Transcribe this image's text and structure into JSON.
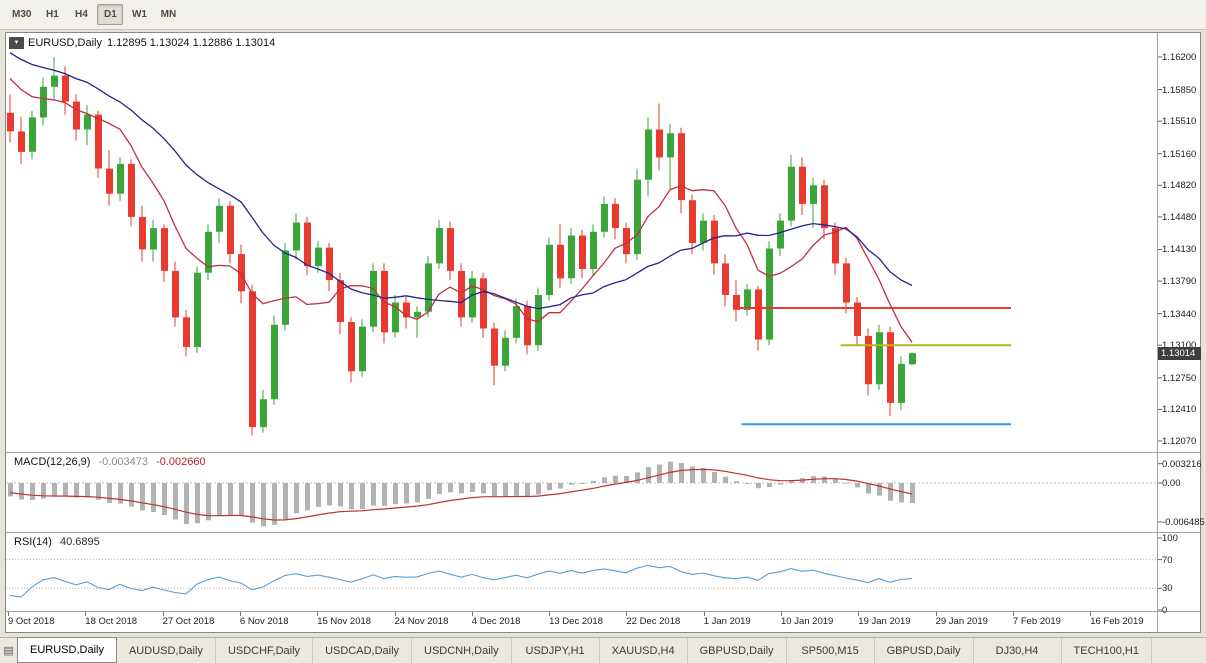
{
  "toolbar": {
    "timeframes": [
      {
        "label": "M30",
        "active": false
      },
      {
        "label": "H1",
        "active": false
      },
      {
        "label": "H4",
        "active": false
      },
      {
        "label": "D1",
        "active": true
      },
      {
        "label": "W1",
        "active": false
      },
      {
        "label": "MN",
        "active": false
      }
    ]
  },
  "icons": {
    "chart_dropdown_marker": "▼",
    "window_list": "▤"
  },
  "chart": {
    "title_symbol": "EURUSD,Daily",
    "title_values": "1.12895 1.13024 1.12886 1.13014"
  },
  "price_axis": {
    "labels": [
      "1.16200",
      "1.15850",
      "1.15510",
      "1.15160",
      "1.14820",
      "1.14480",
      "1.14130",
      "1.13790",
      "1.13440",
      "1.13100",
      "1.12750",
      "1.12410",
      "1.12070"
    ],
    "current_price": "1.13014"
  },
  "date_axis": {
    "labels": [
      "9 Oct 2018",
      "18 Oct 2018",
      "27 Oct 2018",
      "6 Nov 2018",
      "15 Nov 2018",
      "24 Nov 2018",
      "4 Dec 2018",
      "13 Dec 2018",
      "22 Dec 2018",
      "1 Jan 2019",
      "10 Jan 2019",
      "19 Jan 2019",
      "29 Jan 2019",
      "7 Feb 2019",
      "16 Feb 2019"
    ]
  },
  "macd": {
    "label": "MACD(12,26,9)",
    "value_main": "-0.003473",
    "value_signal": "-0.002660",
    "axis": [
      "0.003216",
      "0.00",
      "-0.006485"
    ]
  },
  "rsi": {
    "label": "RSI(14)",
    "value": "40.6895",
    "axis": [
      "100",
      "70",
      "30",
      "0"
    ]
  },
  "tabs": [
    {
      "label": "EURUSD,Daily",
      "active": true
    },
    {
      "label": "AUDUSD,Daily",
      "active": false
    },
    {
      "label": "USDCHF,Daily",
      "active": false
    },
    {
      "label": "USDCAD,Daily",
      "active": false
    },
    {
      "label": "USDCNH,Daily",
      "active": false
    },
    {
      "label": "USDJPY,H1",
      "active": false
    },
    {
      "label": "XAUUSD,H4",
      "active": false
    },
    {
      "label": "GBPUSD,Daily",
      "active": false
    },
    {
      "label": "SP500,M15",
      "active": false
    },
    {
      "label": "GBPUSD,Daily",
      "active": false
    },
    {
      "label": "DJ30,H4",
      "active": false
    },
    {
      "label": "TECH100,H1",
      "active": false
    }
  ],
  "colors": {
    "bull": "#3aa63a",
    "bear": "#e83a2e",
    "ma_fast": "#bf3042",
    "ma_slow": "#24248f",
    "macd_hist": "#b2b2b2",
    "macd_signal": "#c23131",
    "rsi_line": "#55a0d6",
    "line_red": "#e83a2e",
    "line_yellow": "#b0b822",
    "line_blue": "#3d96d9",
    "badge_bg": "#3f3f3f"
  },
  "chart_data": {
    "type": "candlestick",
    "symbol": "EURUSD",
    "period": "Daily",
    "current_price": 1.13014,
    "ohlc_current": {
      "open": 1.12895,
      "high": 1.13024,
      "low": 1.12886,
      "close": 1.13014
    },
    "price_range_shown": [
      1.1207,
      1.162
    ],
    "candles": [
      [
        1.156,
        1.158,
        1.1528,
        1.154
      ],
      [
        1.154,
        1.1556,
        1.1505,
        1.1518
      ],
      [
        1.1518,
        1.1562,
        1.151,
        1.1555
      ],
      [
        1.1555,
        1.1598,
        1.1546,
        1.1588
      ],
      [
        1.1588,
        1.162,
        1.1575,
        1.16
      ],
      [
        1.16,
        1.161,
        1.1558,
        1.1572
      ],
      [
        1.1572,
        1.158,
        1.153,
        1.1542
      ],
      [
        1.1542,
        1.1568,
        1.1525,
        1.1558
      ],
      [
        1.1558,
        1.1562,
        1.149,
        1.15
      ],
      [
        1.15,
        1.152,
        1.146,
        1.1473
      ],
      [
        1.1473,
        1.1512,
        1.1465,
        1.1505
      ],
      [
        1.1505,
        1.151,
        1.1438,
        1.1448
      ],
      [
        1.1448,
        1.146,
        1.14,
        1.1413
      ],
      [
        1.1413,
        1.1445,
        1.14,
        1.1436
      ],
      [
        1.1436,
        1.144,
        1.1378,
        1.139
      ],
      [
        1.139,
        1.14,
        1.133,
        1.134
      ],
      [
        1.134,
        1.1348,
        1.1298,
        1.1308
      ],
      [
        1.1308,
        1.1395,
        1.1302,
        1.1388
      ],
      [
        1.1388,
        1.144,
        1.138,
        1.1432
      ],
      [
        1.1432,
        1.1468,
        1.142,
        1.146
      ],
      [
        1.146,
        1.1465,
        1.1398,
        1.1408
      ],
      [
        1.1408,
        1.1418,
        1.1355,
        1.1368
      ],
      [
        1.1368,
        1.1375,
        1.1213,
        1.1222
      ],
      [
        1.1222,
        1.1262,
        1.1216,
        1.1252
      ],
      [
        1.1252,
        1.1342,
        1.1246,
        1.1332
      ],
      [
        1.1332,
        1.142,
        1.1326,
        1.1412
      ],
      [
        1.1412,
        1.1452,
        1.1402,
        1.1442
      ],
      [
        1.1442,
        1.1448,
        1.1385,
        1.1395
      ],
      [
        1.1395,
        1.1422,
        1.1388,
        1.1415
      ],
      [
        1.1415,
        1.142,
        1.1368,
        1.138
      ],
      [
        1.138,
        1.1388,
        1.1322,
        1.1335
      ],
      [
        1.1335,
        1.134,
        1.127,
        1.1282
      ],
      [
        1.1282,
        1.1338,
        1.1276,
        1.133
      ],
      [
        1.133,
        1.1398,
        1.1324,
        1.139
      ],
      [
        1.139,
        1.1398,
        1.1312,
        1.1324
      ],
      [
        1.1324,
        1.1364,
        1.1318,
        1.1356
      ],
      [
        1.1356,
        1.1362,
        1.1328,
        1.134
      ],
      [
        1.134,
        1.1352,
        1.1318,
        1.1346
      ],
      [
        1.1346,
        1.1406,
        1.134,
        1.1398
      ],
      [
        1.1398,
        1.1445,
        1.1392,
        1.1436
      ],
      [
        1.1436,
        1.1443,
        1.138,
        1.139
      ],
      [
        1.139,
        1.1398,
        1.133,
        1.134
      ],
      [
        1.134,
        1.139,
        1.1334,
        1.1382
      ],
      [
        1.1382,
        1.1388,
        1.1318,
        1.1328
      ],
      [
        1.1328,
        1.1334,
        1.1267,
        1.1288
      ],
      [
        1.1288,
        1.1326,
        1.1282,
        1.1318
      ],
      [
        1.1318,
        1.136,
        1.1312,
        1.1352
      ],
      [
        1.1352,
        1.1358,
        1.13,
        1.131
      ],
      [
        1.131,
        1.1372,
        1.1304,
        1.1364
      ],
      [
        1.1364,
        1.1426,
        1.1358,
        1.1418
      ],
      [
        1.1418,
        1.144,
        1.1372,
        1.1382
      ],
      [
        1.1382,
        1.1436,
        1.1376,
        1.1428
      ],
      [
        1.1428,
        1.1434,
        1.1382,
        1.1392
      ],
      [
        1.1392,
        1.144,
        1.1386,
        1.1432
      ],
      [
        1.1432,
        1.147,
        1.1426,
        1.1462
      ],
      [
        1.1462,
        1.1468,
        1.1424,
        1.1436
      ],
      [
        1.1436,
        1.1442,
        1.1398,
        1.1408
      ],
      [
        1.1408,
        1.15,
        1.1402,
        1.1488
      ],
      [
        1.1488,
        1.1555,
        1.147,
        1.1542
      ],
      [
        1.1542,
        1.157,
        1.1498,
        1.1512
      ],
      [
        1.1512,
        1.1548,
        1.1478,
        1.1538
      ],
      [
        1.1538,
        1.1544,
        1.1452,
        1.1466
      ],
      [
        1.1466,
        1.1472,
        1.1408,
        1.142
      ],
      [
        1.142,
        1.1452,
        1.1412,
        1.1444
      ],
      [
        1.1444,
        1.145,
        1.1386,
        1.1398
      ],
      [
        1.1398,
        1.1408,
        1.1352,
        1.1364
      ],
      [
        1.1364,
        1.138,
        1.1336,
        1.1348
      ],
      [
        1.1348,
        1.1376,
        1.1342,
        1.137
      ],
      [
        1.137,
        1.1374,
        1.1304,
        1.1316
      ],
      [
        1.1316,
        1.1422,
        1.131,
        1.1414
      ],
      [
        1.1414,
        1.1452,
        1.1406,
        1.1444
      ],
      [
        1.1444,
        1.1515,
        1.1438,
        1.1502
      ],
      [
        1.1502,
        1.1512,
        1.145,
        1.1462
      ],
      [
        1.1462,
        1.149,
        1.1436,
        1.1482
      ],
      [
        1.1482,
        1.1488,
        1.1424,
        1.1436
      ],
      [
        1.1436,
        1.1442,
        1.1386,
        1.1398
      ],
      [
        1.1398,
        1.1404,
        1.1344,
        1.1356
      ],
      [
        1.1356,
        1.1362,
        1.131,
        1.132
      ],
      [
        1.132,
        1.1328,
        1.1256,
        1.1268
      ],
      [
        1.1268,
        1.1332,
        1.1262,
        1.1324
      ],
      [
        1.1324,
        1.133,
        1.1234,
        1.1248
      ],
      [
        1.1248,
        1.1298,
        1.124,
        1.129
      ],
      [
        1.12895,
        1.13024,
        1.12886,
        1.13014
      ]
    ],
    "ma_warmup_closes": [
      1.1672,
      1.166,
      1.1666,
      1.1652,
      1.1658,
      1.1644,
      1.165,
      1.1636,
      1.1642,
      1.1628,
      1.1634,
      1.162,
      1.1626,
      1.1612,
      1.1618,
      1.1604,
      1.161,
      1.1596,
      1.1602,
      1.1593
    ],
    "moving_averages": [
      {
        "name": "fast",
        "period": 8,
        "color_key": "ma_fast"
      },
      {
        "name": "slow",
        "period": 20,
        "color_key": "ma_slow"
      }
    ],
    "horizontal_lines": [
      {
        "price": 1.135,
        "color_key": "line_red",
        "from": 66,
        "to": 91
      },
      {
        "price": 1.131,
        "color_key": "line_yellow",
        "from": 75.5,
        "to": 91
      },
      {
        "price": 1.1225,
        "color_key": "line_blue",
        "from": 66.5,
        "to": 91
      }
    ],
    "macd": {
      "fast": 12,
      "slow": 26,
      "signal": 9,
      "current_macd": -0.003473,
      "current_signal": -0.00266,
      "scale_max": 0.003216,
      "scale_min": -0.006485
    },
    "rsi": {
      "period": 14,
      "current": 40.6895,
      "levels": [
        70,
        30
      ],
      "scale": [
        0,
        100
      ]
    }
  }
}
